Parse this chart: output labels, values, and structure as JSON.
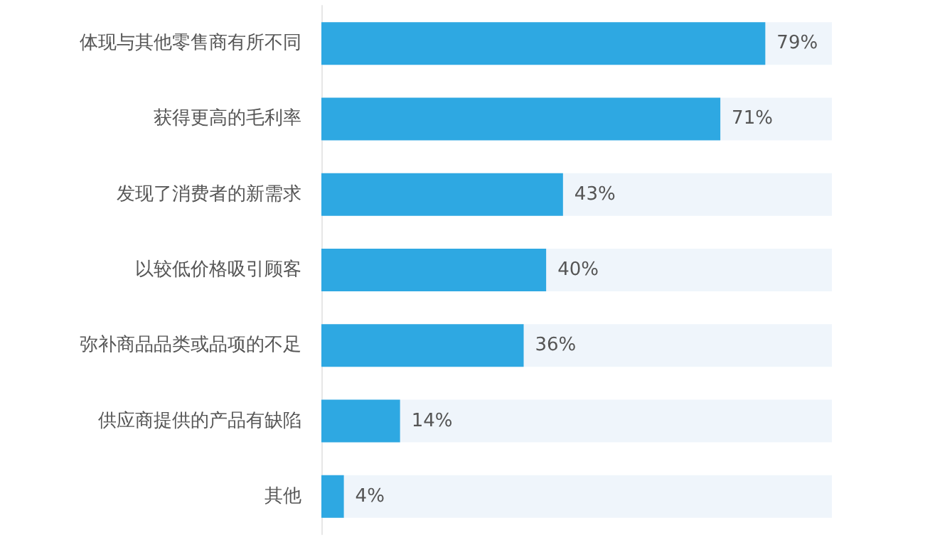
{
  "chart_data": {
    "type": "bar",
    "orientation": "horizontal",
    "categories": [
      "体现与其他零售商有所不同",
      "获得更高的毛利率",
      "发现了消费者的新需求",
      "以较低价格吸引顾客",
      "弥补商品品类或品项的不足",
      "供应商提供的产品有缺陷",
      "其他"
    ],
    "values": [
      79,
      71,
      43,
      40,
      36,
      14,
      4
    ],
    "value_labels": [
      "79%",
      "71%",
      "43%",
      "40%",
      "36%",
      "14%",
      "4%"
    ],
    "color": "#2ea8e2"
  }
}
